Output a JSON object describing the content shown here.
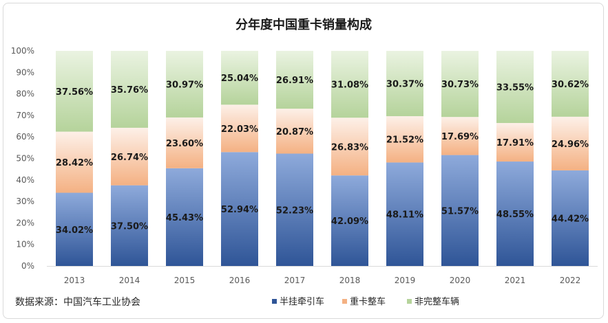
{
  "chart_data": {
    "type": "bar",
    "stacked": true,
    "title": "分年度中国重卡销量构成",
    "categories": [
      "2013",
      "2014",
      "2015",
      "2016",
      "2017",
      "2018",
      "2019",
      "2020",
      "2021",
      "2022"
    ],
    "series": [
      {
        "name": "半挂牵引车",
        "values": [
          34.02,
          37.5,
          45.43,
          52.94,
          52.23,
          42.09,
          48.11,
          51.57,
          48.55,
          44.42
        ],
        "labels": [
          "34.02%",
          "37.50%",
          "45.43%",
          "52.94%",
          "52.23%",
          "42.09%",
          "48.11%",
          "51.57%",
          "48.55%",
          "44.42%"
        ],
        "color_top": "#8eaadb",
        "color_bottom": "#2f5597"
      },
      {
        "name": "重卡整车",
        "values": [
          28.42,
          26.74,
          23.6,
          22.03,
          20.87,
          26.83,
          21.52,
          17.69,
          17.91,
          24.96
        ],
        "labels": [
          "28.42%",
          "26.74%",
          "23.60%",
          "22.03%",
          "20.87%",
          "26.83%",
          "21.52%",
          "17.69%",
          "17.91%",
          "24.96%"
        ],
        "color_top": "#fdf0e8",
        "color_bottom": "#f4b183"
      },
      {
        "name": "非完整车辆",
        "values": [
          37.56,
          35.76,
          30.97,
          25.04,
          26.91,
          31.08,
          30.37,
          30.73,
          33.55,
          30.62
        ],
        "labels": [
          "37.56%",
          "35.76%",
          "30.97%",
          "25.04%",
          "26.91%",
          "31.08%",
          "30.37%",
          "30.73%",
          "33.55%",
          "30.62%"
        ],
        "color_top": "#eaf3e1",
        "color_bottom": "#b5d39b"
      }
    ],
    "y_ticks": [
      "0%",
      "10%",
      "20%",
      "30%",
      "40%",
      "50%",
      "60%",
      "70%",
      "80%",
      "90%",
      "100%"
    ],
    "ylim": [
      0,
      100
    ],
    "grid": false,
    "legend_position": "bottom"
  },
  "source_text": "数据来源：中国汽车工业协会"
}
